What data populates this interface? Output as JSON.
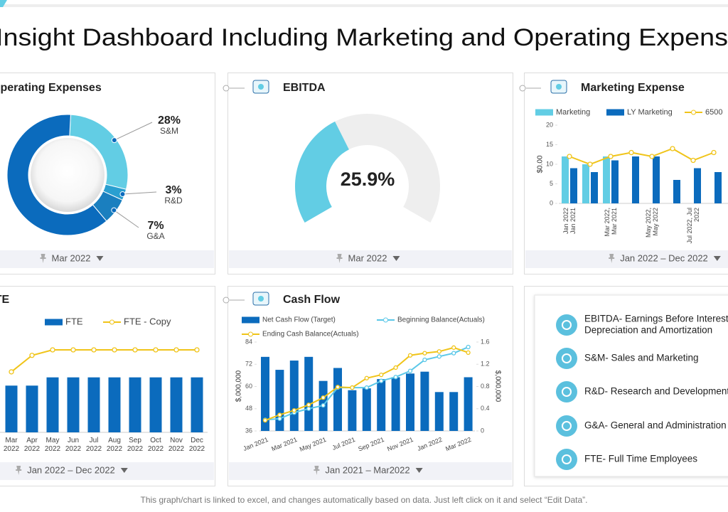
{
  "title": "Insight Dashboard Including Marketing and Operating Expens",
  "note": "This graph/chart is linked to excel, and changes automatically based on data. Just left click on it and select “Edit Data”.",
  "glossary": [
    [
      "EBITDA- Earnings Before Interest,",
      "Depreciation and Amortization"
    ],
    [
      "S&M- Sales and Marketing"
    ],
    [
      "R&D- Research and Development"
    ],
    [
      "G&A- General and Administration"
    ],
    [
      "FTE- Full Time Employees"
    ]
  ],
  "chart_data": [
    {
      "type": "donut",
      "title": "Operating Expenses",
      "period": "Mar 2022",
      "categories": [
        "S&M",
        "R&D",
        "G&A",
        null
      ],
      "values": [
        28,
        3,
        7,
        62
      ],
      "value_labels": [
        "28%",
        "3%",
        "7%",
        null
      ],
      "colors": [
        "#62cde4",
        "#2a9fd0",
        "#1a7fbf",
        "#0b6bbd"
      ]
    },
    {
      "type": "gauge",
      "title": "EBITDA",
      "period": "Mar 2022",
      "value": 25.9,
      "value_label": "25.9%",
      "color": "#62cde4",
      "track_color": "#eeeeee"
    },
    {
      "type": "combo",
      "title": "Marketing Expense",
      "period": "Jan 2022 – Dec 2022",
      "y_label": "$0.00",
      "categories": [
        "Jan 2022 Jan 2021",
        null,
        "Mar 2022, Mar 2021",
        null,
        "May 2022, May 2022",
        null,
        "Jul 2022, Jul 2022",
        null
      ],
      "ylim": [
        0,
        20
      ],
      "yticks": [
        0,
        5,
        10,
        15,
        20
      ],
      "series": [
        {
          "name": "Marketing",
          "kind": "bar",
          "color": "#62cde4",
          "values": [
            12,
            10,
            12,
            null,
            null,
            null,
            null,
            null
          ]
        },
        {
          "name": "LY Marketing",
          "kind": "bar",
          "color": "#0b6bbd",
          "values": [
            9,
            8,
            11,
            12,
            12,
            6,
            9,
            8
          ]
        },
        {
          "name": "6500",
          "kind": "line",
          "color": "#f0c419",
          "values": [
            12,
            10,
            12,
            13,
            12,
            14,
            11,
            13
          ]
        }
      ]
    },
    {
      "type": "combo",
      "title": "FTE",
      "period": "Jan 2022 – Dec 2022",
      "categories": [
        "Mar 2022",
        "Apr 2022",
        "May 2022",
        "Jun 2022",
        "Jul 2022",
        "Aug 2022",
        "Sep 2022",
        "Oct 2022",
        "Nov 2022",
        "Dec 2022"
      ],
      "series": [
        {
          "name": "FTE",
          "kind": "bar",
          "color": "#0b6bbd",
          "values": [
            17,
            17,
            20,
            20,
            20,
            20,
            20,
            20,
            20,
            20
          ]
        },
        {
          "name": "FTE - Copy",
          "kind": "line",
          "color": "#f0c419",
          "values": [
            22,
            28,
            30,
            30,
            30,
            30,
            30,
            30,
            30,
            30
          ]
        }
      ]
    },
    {
      "type": "combo",
      "title": "Cash Flow",
      "period": "Jan 2021 – Mar2022",
      "y_label": "$,000,000",
      "y2_label": "$,000,000",
      "categories": [
        "Jan 2021",
        null,
        "Mar 2021",
        null,
        "May 2021",
        null,
        "Jul 2021",
        null,
        "Sep 2021",
        null,
        "Nov 2021",
        null,
        "Jan 2022",
        null,
        "Mar 2022"
      ],
      "ylim": [
        36,
        84
      ],
      "yticks": [
        36,
        48,
        60,
        72,
        84
      ],
      "y2lim": [
        0,
        1.6
      ],
      "y2ticks": [
        0,
        0.4,
        0.8,
        1.2,
        1.6
      ],
      "series": [
        {
          "name": "Net Cash Flow (Target)",
          "kind": "bar",
          "color": "#0b6bbd",
          "values": [
            76,
            69,
            74,
            76,
            63,
            70,
            58,
            59,
            64,
            65,
            67,
            68,
            57,
            57,
            65
          ]
        },
        {
          "name": "Beginning Balance(Actuals)",
          "kind": "line",
          "axis": "y2",
          "color": "#5bc8e8",
          "values": [
            0.2,
            0.22,
            0.33,
            0.4,
            0.46,
            0.78,
            0.78,
            0.78,
            0.9,
            0.97,
            1.08,
            1.28,
            1.34,
            1.4,
            1.51
          ]
        },
        {
          "name": "Ending Cash Balance(Actuals)",
          "kind": "line",
          "axis": "y2",
          "color": "#f0c419",
          "values": [
            0.19,
            0.29,
            0.37,
            0.47,
            0.6,
            0.79,
            0.78,
            0.95,
            1.01,
            1.14,
            1.36,
            1.4,
            1.43,
            1.5,
            1.41
          ]
        }
      ]
    }
  ]
}
